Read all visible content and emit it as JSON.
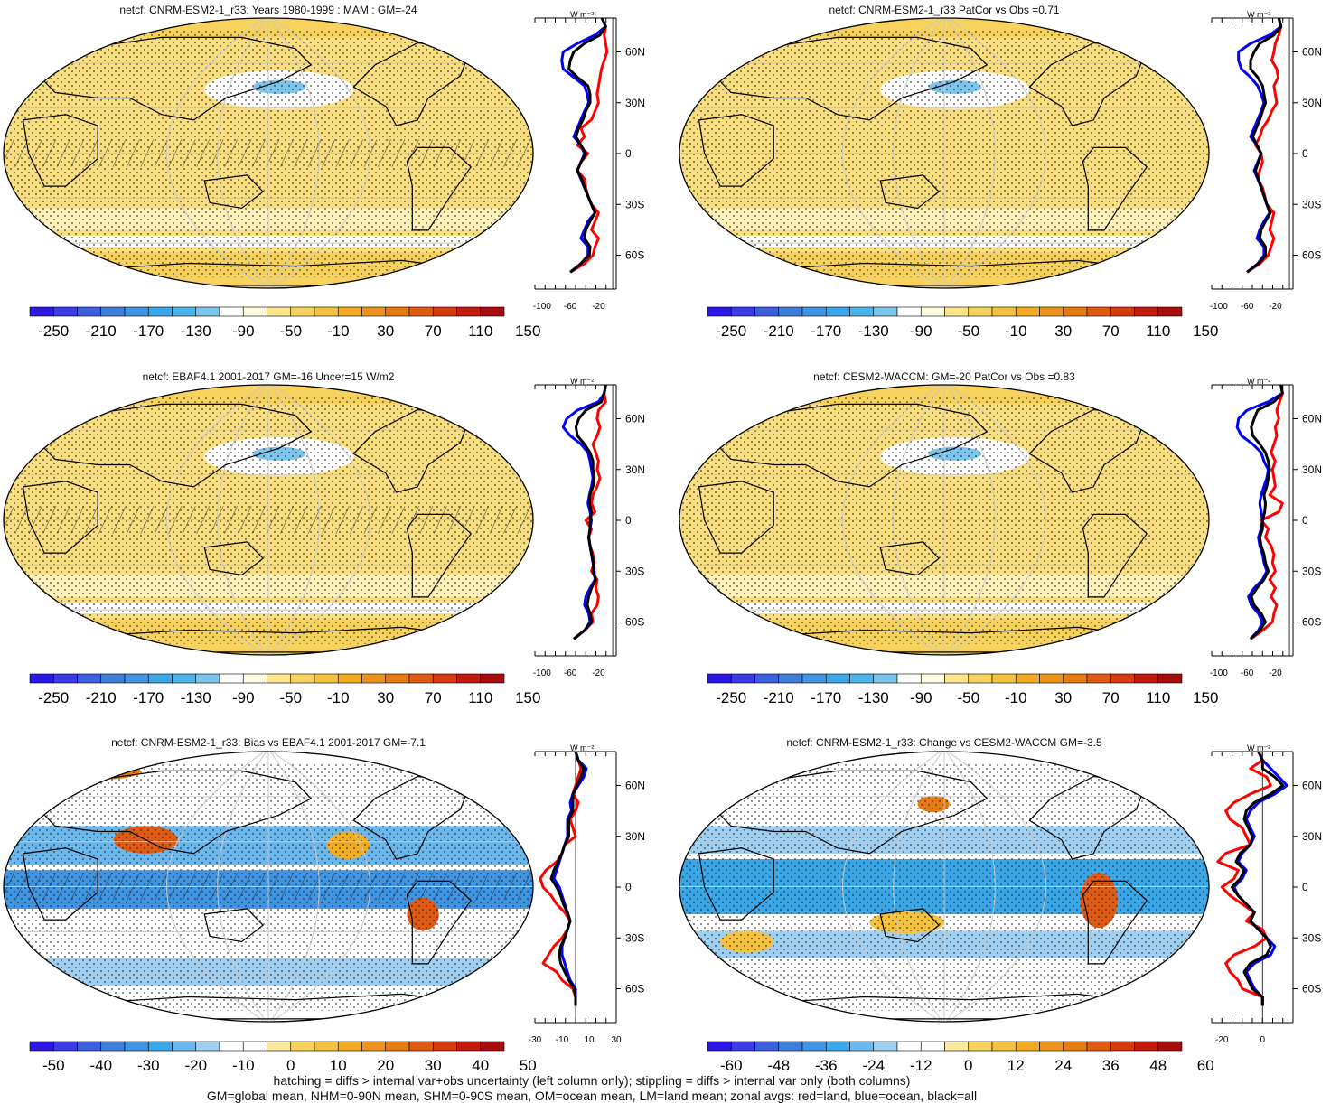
{
  "palette_main": [
    "#2b18e6",
    "#3a3ce6",
    "#3c5fe0",
    "#3f7ed9",
    "#3f95e2",
    "#3aa8e8",
    "#4bb4ea",
    "#7cc6ee",
    "#ffffff",
    "#fffbe0",
    "#fbe48a",
    "#f7d35e",
    "#f5c23d",
    "#f2ac22",
    "#ee931a",
    "#e87a12",
    "#e05a12",
    "#d83a10",
    "#c41a0e",
    "#a80d0d"
  ],
  "palette_diff": [
    "#2b18e6",
    "#3a3ce6",
    "#3c5fe0",
    "#3f7ed9",
    "#3f95e2",
    "#3aa8e8",
    "#6ab8ee",
    "#9fd0f2",
    "#ffffff",
    "#ffffff",
    "#fbe9a0",
    "#f7d35e",
    "#f5c23d",
    "#f2ac22",
    "#ee931a",
    "#e87a12",
    "#e05a12",
    "#d83a10",
    "#c41a0e",
    "#a80d0d"
  ],
  "colors": {
    "land": "#ff0000",
    "ocean": "#0000ff",
    "all": "#000000",
    "ocean_fill": "#f9df80",
    "white_band": "#ffffff",
    "blue_fill": "#4aa8e8"
  },
  "footer": {
    "line1": "hatching = diffs > internal var+obs uncertainty (left column only); stippling = diffs > internal var only (both columns)",
    "line2": "GM=global mean, NHM=0-90N mean, SHM=0-90S mean, OM=ocean mean, LM=land mean; zonal avgs: red=land, blue=ocean, black=all"
  },
  "panels": [
    {
      "title": "netcf: CNRM-ESM2-1_r33: Years 1980-1999 : MAM : GM=-24",
      "map_style": "main",
      "colorbar": {
        "labels": [
          "-250",
          "-210",
          "-170",
          "-130",
          "-90",
          "-50",
          "-10",
          "30",
          "70",
          "110",
          "150"
        ],
        "palette": "main"
      },
      "zonal": {
        "unit": "W m⁻²",
        "xmin": -110,
        "xmax": 5,
        "xticks": [
          "-100",
          "-60",
          "-20"
        ],
        "xtick_values": [
          -100,
          -60,
          -20
        ],
        "lat_labels": [
          "60N",
          "30N",
          "0",
          "30S",
          "60S"
        ],
        "lat_values": [
          60,
          30,
          0,
          -30,
          -60
        ],
        "series": {
          "lat": [
            80,
            75,
            70,
            65,
            60,
            55,
            50,
            45,
            40,
            35,
            30,
            25,
            20,
            15,
            10,
            5,
            0,
            -5,
            -10,
            -15,
            -20,
            -25,
            -30,
            -35,
            -40,
            -45,
            -50,
            -55,
            -60,
            -65,
            -70
          ],
          "land": [
            -15,
            -10,
            -12,
            -10,
            -8,
            -12,
            -16,
            -18,
            -20,
            -22,
            -20,
            -25,
            -30,
            -45,
            -40,
            -50,
            -35,
            -45,
            -50,
            -40,
            -38,
            -35,
            -30,
            -20,
            -25,
            -30,
            -20,
            -25,
            -28,
            -40,
            -60
          ],
          "ocean": [
            -15,
            -10,
            -25,
            -50,
            -70,
            -72,
            -70,
            -55,
            -40,
            -36,
            -34,
            -40,
            -45,
            -50,
            -55,
            -45,
            -40,
            -45,
            -50,
            -45,
            -40,
            -35,
            -30,
            -25,
            -35,
            -40,
            -45,
            -35,
            -35,
            -45,
            -60
          ],
          "all": [
            -15,
            -10,
            -18,
            -40,
            -55,
            -60,
            -62,
            -50,
            -35,
            -32,
            -32,
            -38,
            -42,
            -48,
            -52,
            -45,
            -38,
            -45,
            -50,
            -44,
            -40,
            -35,
            -30,
            -25,
            -32,
            -38,
            -40,
            -32,
            -33,
            -45,
            -60
          ]
        }
      }
    },
    {
      "title": "netcf: CNRM-ESM2-1_r33 PatCor vs Obs =0.71",
      "map_style": "main",
      "colorbar": {
        "labels": [
          "-250",
          "-210",
          "-170",
          "-130",
          "-90",
          "-50",
          "-10",
          "30",
          "70",
          "110",
          "150"
        ],
        "palette": "main"
      },
      "zonal": {
        "unit": "W m⁻²",
        "xmin": -110,
        "xmax": 5,
        "xticks": [
          "-100",
          "-60",
          "-20"
        ],
        "xtick_values": [
          -100,
          -60,
          -20
        ],
        "lat_labels": [
          "60N",
          "30N",
          "0",
          "30S",
          "60S"
        ],
        "lat_values": [
          60,
          30,
          0,
          -30,
          -60
        ],
        "series": {
          "lat": [
            80,
            75,
            70,
            65,
            60,
            55,
            50,
            45,
            40,
            35,
            30,
            25,
            20,
            15,
            10,
            5,
            0,
            -5,
            -10,
            -15,
            -20,
            -25,
            -30,
            -35,
            -40,
            -45,
            -50,
            -55,
            -60,
            -65,
            -70
          ],
          "land": [
            -15,
            -12,
            -15,
            -20,
            -22,
            -25,
            -18,
            -16,
            -22,
            -20,
            -18,
            -25,
            -30,
            -38,
            -42,
            -48,
            -40,
            -38,
            -42,
            -45,
            -38,
            -35,
            -32,
            -22,
            -25,
            -28,
            -22,
            -26,
            -30,
            -42,
            -60
          ],
          "ocean": [
            -15,
            -12,
            -28,
            -55,
            -72,
            -72,
            -68,
            -55,
            -45,
            -40,
            -36,
            -40,
            -45,
            -50,
            -55,
            -46,
            -40,
            -45,
            -50,
            -45,
            -40,
            -36,
            -32,
            -28,
            -36,
            -42,
            -46,
            -36,
            -36,
            -45,
            -60
          ],
          "all": [
            -15,
            -12,
            -22,
            -42,
            -50,
            -55,
            -55,
            -45,
            -38,
            -36,
            -34,
            -38,
            -42,
            -47,
            -52,
            -46,
            -40,
            -44,
            -48,
            -44,
            -40,
            -36,
            -32,
            -27,
            -34,
            -40,
            -42,
            -34,
            -34,
            -44,
            -60
          ]
        }
      }
    },
    {
      "title": "netcf: EBAF4.1 2001-2017 GM=-16 Uncer=15 W/m2",
      "map_style": "main",
      "colorbar": {
        "labels": [
          "-250",
          "-210",
          "-170",
          "-130",
          "-90",
          "-50",
          "-10",
          "30",
          "70",
          "110",
          "150"
        ],
        "palette": "main"
      },
      "zonal": {
        "unit": "W m⁻²",
        "xmin": -110,
        "xmax": 5,
        "xticks": [
          "-100",
          "-60",
          "-20"
        ],
        "xtick_values": [
          -100,
          -60,
          -20
        ],
        "lat_labels": [
          "60N",
          "30N",
          "0",
          "30S",
          "60S"
        ],
        "lat_values": [
          60,
          30,
          0,
          -30,
          -60
        ],
        "series": {
          "lat": [
            80,
            75,
            70,
            65,
            60,
            55,
            50,
            45,
            40,
            35,
            30,
            25,
            20,
            15,
            10,
            5,
            0,
            -5,
            -10,
            -15,
            -20,
            -25,
            -30,
            -35,
            -40,
            -45,
            -50,
            -55,
            -60,
            -65,
            -70
          ],
          "land": [
            -10,
            -12,
            -10,
            -20,
            -22,
            -18,
            -22,
            -28,
            -24,
            -20,
            -22,
            -18,
            -22,
            -28,
            -30,
            -25,
            -38,
            -30,
            -34,
            -32,
            -28,
            -26,
            -30,
            -22,
            -24,
            -20,
            -22,
            -30,
            -28,
            -40,
            -55
          ],
          "ocean": [
            -10,
            -12,
            -20,
            -50,
            -65,
            -70,
            -60,
            -45,
            -35,
            -32,
            -30,
            -28,
            -30,
            -33,
            -35,
            -32,
            -30,
            -32,
            -34,
            -32,
            -30,
            -28,
            -26,
            -25,
            -32,
            -38,
            -40,
            -34,
            -32,
            -40,
            -55
          ],
          "all": [
            -10,
            -12,
            -16,
            -38,
            -48,
            -52,
            -50,
            -40,
            -32,
            -28,
            -28,
            -26,
            -28,
            -32,
            -33,
            -30,
            -32,
            -32,
            -34,
            -32,
            -30,
            -27,
            -28,
            -24,
            -30,
            -34,
            -36,
            -32,
            -30,
            -40,
            -55
          ]
        }
      }
    },
    {
      "title": "netcf: CESM2-WACCM: GM=-20 PatCor vs Obs =0.83",
      "map_style": "main",
      "colorbar": {
        "labels": [
          "-250",
          "-210",
          "-170",
          "-130",
          "-90",
          "-50",
          "-10",
          "30",
          "70",
          "110",
          "150"
        ],
        "palette": "main"
      },
      "zonal": {
        "unit": "W m⁻²",
        "xmin": -110,
        "xmax": 5,
        "xticks": [
          "-100",
          "-60",
          "-20"
        ],
        "xtick_values": [
          -100,
          -60,
          -20
        ],
        "lat_labels": [
          "60N",
          "30N",
          "0",
          "30S",
          "60S"
        ],
        "lat_values": [
          60,
          30,
          0,
          -30,
          -60
        ],
        "series": {
          "lat": [
            80,
            75,
            70,
            65,
            60,
            55,
            50,
            45,
            40,
            35,
            30,
            25,
            20,
            15,
            10,
            5,
            0,
            -5,
            -10,
            -15,
            -20,
            -25,
            -30,
            -35,
            -40,
            -45,
            -50,
            -55,
            -60,
            -65,
            -70
          ],
          "land": [
            -12,
            -10,
            -14,
            -18,
            -15,
            -20,
            -18,
            -22,
            -26,
            -20,
            -24,
            -22,
            -20,
            -28,
            -10,
            -15,
            -40,
            -30,
            -34,
            -26,
            -22,
            -24,
            -20,
            -28,
            -20,
            -26,
            -18,
            -22,
            -24,
            -38,
            -55
          ],
          "ocean": [
            -12,
            -10,
            -30,
            -60,
            -72,
            -74,
            -68,
            -52,
            -40,
            -36,
            -30,
            -32,
            -36,
            -40,
            -42,
            -40,
            -38,
            -40,
            -44,
            -42,
            -38,
            -36,
            -32,
            -38,
            -50,
            -58,
            -54,
            -44,
            -38,
            -44,
            -55
          ],
          "all": [
            -12,
            -10,
            -22,
            -45,
            -50,
            -54,
            -52,
            -42,
            -34,
            -30,
            -28,
            -30,
            -32,
            -36,
            -34,
            -35,
            -38,
            -38,
            -42,
            -40,
            -36,
            -34,
            -30,
            -36,
            -46,
            -54,
            -50,
            -40,
            -34,
            -42,
            -55
          ]
        }
      }
    },
    {
      "title": "netcf: CNRM-ESM2-1_r33: Bias vs EBAF4.1 2001-2017 GM=-7.1",
      "map_style": "bias",
      "colorbar": {
        "labels": [
          "-50",
          "-40",
          "-30",
          "-20",
          "-10",
          "0",
          "10",
          "20",
          "30",
          "40",
          "50"
        ],
        "palette": "diff"
      },
      "zonal": {
        "unit": "W m⁻²",
        "xmin": -30,
        "xmax": 30,
        "xticks": [
          "-30",
          "-10",
          "10",
          "30"
        ],
        "xtick_values": [
          -30,
          -10,
          10,
          30
        ],
        "lat_labels": [
          "60N",
          "30N",
          "0",
          "30S",
          "60S"
        ],
        "lat_values": [
          60,
          30,
          0,
          -30,
          -60
        ],
        "series": {
          "lat": [
            80,
            75,
            70,
            65,
            60,
            55,
            50,
            45,
            40,
            35,
            30,
            25,
            20,
            15,
            10,
            5,
            0,
            -5,
            -10,
            -15,
            -20,
            -25,
            -30,
            -35,
            -40,
            -45,
            -50,
            -55,
            -60,
            -65,
            -70
          ],
          "land": [
            0,
            2,
            4,
            2,
            0,
            -2,
            2,
            0,
            -4,
            -2,
            0,
            -8,
            -10,
            -14,
            -22,
            -26,
            -24,
            -18,
            -14,
            -8,
            -4,
            -6,
            -10,
            -16,
            -20,
            -24,
            -14,
            -10,
            -2,
            0,
            0
          ],
          "ocean": [
            0,
            2,
            8,
            6,
            2,
            -2,
            -4,
            -3,
            -6,
            -6,
            -6,
            -8,
            -10,
            -12,
            -14,
            -16,
            -12,
            -10,
            -8,
            -6,
            -4,
            -6,
            -8,
            -10,
            -10,
            -8,
            -6,
            -4,
            0,
            0,
            0
          ],
          "all": [
            0,
            2,
            6,
            4,
            1,
            -2,
            -2,
            -2,
            -5,
            -5,
            -5,
            -8,
            -10,
            -13,
            -16,
            -18,
            -14,
            -11,
            -9,
            -6,
            -4,
            -6,
            -8,
            -11,
            -12,
            -11,
            -8,
            -5,
            -1,
            0,
            0
          ]
        }
      }
    },
    {
      "title": "netcf: CNRM-ESM2-1_r33: Change vs CESM2-WACCM GM=-3.5",
      "map_style": "change",
      "colorbar": {
        "labels": [
          "-60",
          "-48",
          "-36",
          "-24",
          "-12",
          "0",
          "12",
          "24",
          "36",
          "48",
          "60"
        ],
        "palette": "diff"
      },
      "zonal": {
        "unit": "W m⁻²",
        "xmin": -25,
        "xmax": 15,
        "xticks": [
          "-20",
          "0"
        ],
        "xtick_values": [
          -20,
          0
        ],
        "lat_labels": [
          "60N",
          "30N",
          "0",
          "30S",
          "60S"
        ],
        "lat_values": [
          60,
          30,
          0,
          -30,
          -60
        ],
        "series": {
          "lat": [
            80,
            75,
            70,
            65,
            60,
            55,
            50,
            45,
            40,
            35,
            30,
            25,
            20,
            15,
            10,
            5,
            0,
            -5,
            -10,
            -15,
            -20,
            -25,
            -30,
            -35,
            -40,
            -45,
            -50,
            -55,
            -60,
            -65,
            -70
          ],
          "land": [
            -2,
            0,
            -6,
            2,
            4,
            -6,
            -14,
            -18,
            -16,
            -10,
            -8,
            -6,
            -18,
            -22,
            -12,
            -14,
            -20,
            -16,
            -10,
            -4,
            -8,
            0,
            2,
            -4,
            -14,
            -18,
            -16,
            -12,
            -10,
            0,
            0
          ],
          "ocean": [
            -2,
            0,
            4,
            8,
            12,
            6,
            -2,
            -6,
            -8,
            -6,
            -4,
            -6,
            -10,
            -12,
            -8,
            -10,
            -14,
            -12,
            -8,
            -4,
            -6,
            -2,
            2,
            6,
            4,
            -4,
            -8,
            -6,
            -4,
            0,
            0
          ],
          "all": [
            -2,
            0,
            0,
            6,
            10,
            4,
            -4,
            -8,
            -9,
            -7,
            -5,
            -6,
            -11,
            -13,
            -9,
            -11,
            -15,
            -12,
            -8,
            -4,
            -6,
            -2,
            2,
            4,
            2,
            -6,
            -9,
            -7,
            -5,
            0,
            0
          ]
        }
      }
    }
  ]
}
